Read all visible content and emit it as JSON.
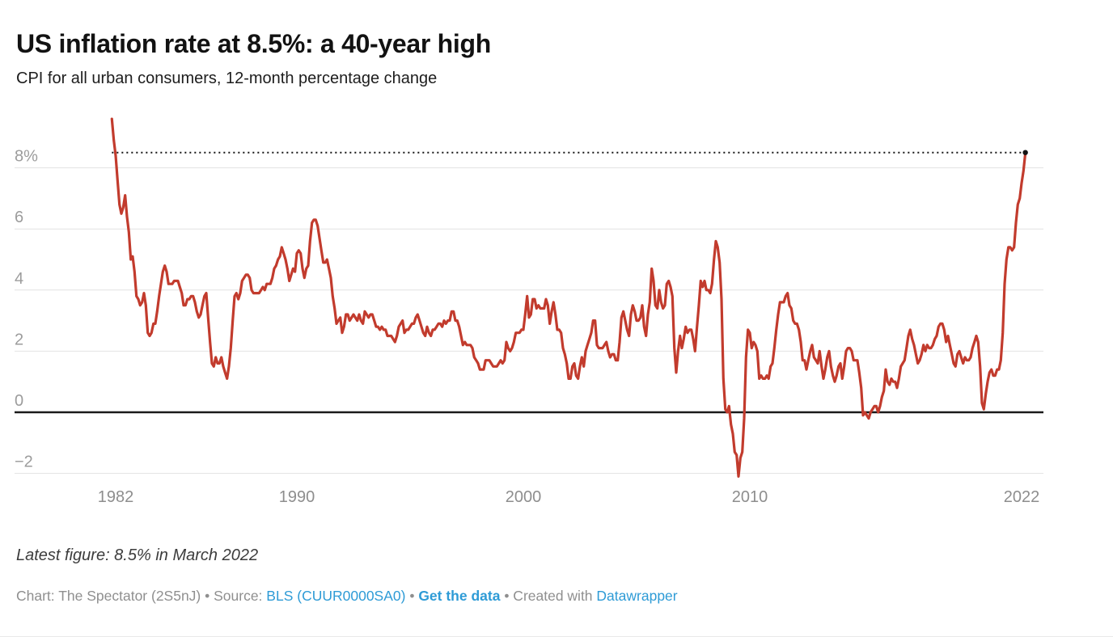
{
  "header": {
    "title": "US inflation rate at 8.5%: a 40-year high",
    "subtitle": "CPI for all urban consumers, 12-month percentage change"
  },
  "footer": {
    "latest_figure": "Latest figure: 8.5% in March 2022",
    "credit_prefix": "Chart: The Spectator (2S5nJ) • Source: ",
    "source_link": "BLS (CUUR0000SA0)",
    "separator1": " • ",
    "get_data_link": "Get the data",
    "separator2": " • Created with ",
    "datawrapper_link": "Datawrapper"
  },
  "colors": {
    "line": "#c23b2d",
    "link": "#2e9bd6",
    "grid": "#e2e2e2",
    "zero_line": "#1a1a1a",
    "reference_line": "#141414",
    "y_label": "#9c9c9c",
    "x_label": "#8e8e8e"
  },
  "chart_data": {
    "type": "line",
    "title": "US inflation rate at 8.5%: a 40-year high",
    "subtitle": "CPI for all urban consumers, 12-month percentage change",
    "series_name": "CPI 12-month percentage change",
    "unit": "%",
    "frequency": "monthly",
    "start": {
      "year": 1981,
      "month": 11
    },
    "end": {
      "year": 2022,
      "month": 3
    },
    "ylim": [
      -2.7,
      9.7
    ],
    "grid": true,
    "line_color": "#c23b2d",
    "reference_line": {
      "value": 8.5,
      "style": "dotted",
      "meaning": "latest value 8.5% in March 2022"
    },
    "y_ticks": [
      {
        "value": 8,
        "label": "8%"
      },
      {
        "value": 6,
        "label": "6"
      },
      {
        "value": 4,
        "label": "4"
      },
      {
        "value": 2,
        "label": "2"
      },
      {
        "value": 0,
        "label": "0"
      },
      {
        "value": -2,
        "label": "−2"
      }
    ],
    "x_ticks": [
      {
        "year": 1982,
        "label": "1982"
      },
      {
        "year": 1990,
        "label": "1990"
      },
      {
        "year": 2000,
        "label": "2000"
      },
      {
        "year": 2010,
        "label": "2010"
      },
      {
        "year": 2022,
        "label": "2022"
      }
    ],
    "values": [
      9.6,
      8.9,
      8.4,
      7.6,
      6.8,
      6.5,
      6.7,
      7.1,
      6.4,
      5.9,
      5.0,
      5.1,
      4.6,
      3.8,
      3.7,
      3.5,
      3.6,
      3.9,
      3.5,
      2.6,
      2.5,
      2.6,
      2.9,
      2.9,
      3.3,
      3.8,
      4.2,
      4.6,
      4.8,
      4.6,
      4.2,
      4.2,
      4.2,
      4.3,
      4.3,
      4.3,
      4.1,
      3.9,
      3.5,
      3.5,
      3.7,
      3.7,
      3.8,
      3.8,
      3.6,
      3.3,
      3.1,
      3.2,
      3.5,
      3.8,
      3.9,
      3.1,
      2.3,
      1.6,
      1.5,
      1.8,
      1.6,
      1.6,
      1.8,
      1.5,
      1.3,
      1.1,
      1.5,
      2.1,
      3.0,
      3.8,
      3.9,
      3.7,
      3.9,
      4.3,
      4.4,
      4.5,
      4.5,
      4.4,
      4.0,
      3.9,
      3.9,
      3.9,
      3.9,
      4.0,
      4.1,
      4.0,
      4.2,
      4.2,
      4.2,
      4.4,
      4.7,
      4.8,
      5.0,
      5.1,
      5.4,
      5.2,
      5.0,
      4.7,
      4.3,
      4.5,
      4.7,
      4.6,
      5.2,
      5.3,
      5.2,
      4.7,
      4.4,
      4.7,
      4.8,
      5.6,
      6.2,
      6.3,
      6.3,
      6.1,
      5.7,
      5.3,
      4.9,
      4.9,
      5.0,
      4.7,
      4.4,
      3.8,
      3.4,
      2.9,
      3.0,
      3.1,
      2.6,
      2.8,
      3.2,
      3.2,
      3.0,
      3.1,
      3.2,
      3.1,
      3.0,
      3.2,
      3.0,
      2.9,
      3.3,
      3.2,
      3.1,
      3.2,
      3.2,
      3.0,
      2.8,
      2.8,
      2.7,
      2.8,
      2.7,
      2.7,
      2.5,
      2.5,
      2.5,
      2.4,
      2.3,
      2.5,
      2.8,
      2.9,
      3.0,
      2.6,
      2.7,
      2.7,
      2.8,
      2.9,
      2.9,
      3.1,
      3.2,
      3.0,
      2.8,
      2.6,
      2.5,
      2.8,
      2.6,
      2.5,
      2.7,
      2.7,
      2.8,
      2.9,
      2.9,
      2.8,
      3.0,
      2.9,
      3.0,
      3.0,
      3.3,
      3.3,
      3.0,
      3.0,
      2.8,
      2.5,
      2.2,
      2.3,
      2.2,
      2.2,
      2.2,
      2.1,
      1.8,
      1.7,
      1.6,
      1.4,
      1.4,
      1.4,
      1.7,
      1.7,
      1.7,
      1.6,
      1.5,
      1.5,
      1.5,
      1.6,
      1.7,
      1.6,
      1.7,
      2.3,
      2.1,
      2.0,
      2.1,
      2.3,
      2.6,
      2.6,
      2.6,
      2.7,
      2.7,
      3.2,
      3.8,
      3.1,
      3.2,
      3.7,
      3.7,
      3.4,
      3.5,
      3.4,
      3.4,
      3.4,
      3.7,
      3.5,
      2.9,
      3.3,
      3.6,
      3.2,
      2.7,
      2.7,
      2.6,
      2.1,
      1.9,
      1.6,
      1.1,
      1.1,
      1.5,
      1.6,
      1.2,
      1.1,
      1.5,
      1.8,
      1.5,
      2.0,
      2.2,
      2.4,
      2.6,
      3.0,
      3.0,
      2.2,
      2.1,
      2.1,
      2.1,
      2.2,
      2.3,
      2.0,
      1.8,
      1.9,
      1.9,
      1.7,
      1.7,
      2.3,
      3.1,
      3.3,
      3.0,
      2.7,
      2.5,
      3.2,
      3.5,
      3.3,
      3.0,
      3.0,
      3.1,
      3.5,
      2.8,
      2.5,
      3.2,
      3.6,
      4.7,
      4.3,
      3.5,
      3.4,
      4.0,
      3.6,
      3.4,
      3.5,
      4.2,
      4.3,
      4.1,
      3.8,
      2.1,
      1.3,
      2.0,
      2.5,
      2.1,
      2.4,
      2.8,
      2.6,
      2.7,
      2.7,
      2.4,
      2.0,
      2.8,
      3.5,
      4.3,
      4.1,
      4.3,
      4.0,
      4.0,
      3.9,
      4.2,
      5.0,
      5.6,
      5.4,
      4.9,
      3.7,
      1.1,
      0.1,
      0.0,
      0.2,
      -0.4,
      -0.7,
      -1.3,
      -1.4,
      -2.1,
      -1.5,
      -1.3,
      -0.2,
      1.8,
      2.7,
      2.6,
      2.1,
      2.3,
      2.2,
      2.0,
      1.1,
      1.2,
      1.1,
      1.1,
      1.2,
      1.1,
      1.5,
      1.6,
      2.1,
      2.7,
      3.2,
      3.6,
      3.6,
      3.6,
      3.8,
      3.9,
      3.5,
      3.4,
      3.0,
      2.9,
      2.9,
      2.7,
      2.3,
      1.7,
      1.7,
      1.4,
      1.7,
      2.0,
      2.2,
      1.8,
      1.7,
      1.6,
      2.0,
      1.5,
      1.1,
      1.4,
      1.8,
      2.0,
      1.5,
      1.2,
      1.0,
      1.2,
      1.5,
      1.6,
      1.1,
      1.5,
      2.0,
      2.1,
      2.1,
      2.0,
      1.7,
      1.7,
      1.7,
      1.3,
      0.8,
      -0.1,
      0.0,
      -0.1,
      -0.2,
      0.0,
      0.1,
      0.2,
      0.2,
      0.0,
      0.2,
      0.5,
      0.7,
      1.4,
      1.0,
      0.9,
      1.1,
      1.0,
      1.0,
      0.8,
      1.1,
      1.5,
      1.6,
      1.7,
      2.1,
      2.5,
      2.7,
      2.4,
      2.2,
      1.9,
      1.6,
      1.7,
      1.9,
      2.2,
      2.0,
      2.2,
      2.1,
      2.1,
      2.2,
      2.4,
      2.5,
      2.8,
      2.9,
      2.9,
      2.7,
      2.3,
      2.5,
      2.2,
      1.9,
      1.6,
      1.5,
      1.9,
      2.0,
      1.8,
      1.6,
      1.8,
      1.7,
      1.7,
      1.8,
      2.1,
      2.3,
      2.5,
      2.3,
      1.5,
      0.3,
      0.1,
      0.6,
      1.0,
      1.3,
      1.4,
      1.2,
      1.2,
      1.4,
      1.4,
      1.7,
      2.6,
      4.2,
      5.0,
      5.4,
      5.4,
      5.3,
      5.4,
      6.2,
      6.8,
      7.0,
      7.5,
      7.9,
      8.5
    ]
  }
}
